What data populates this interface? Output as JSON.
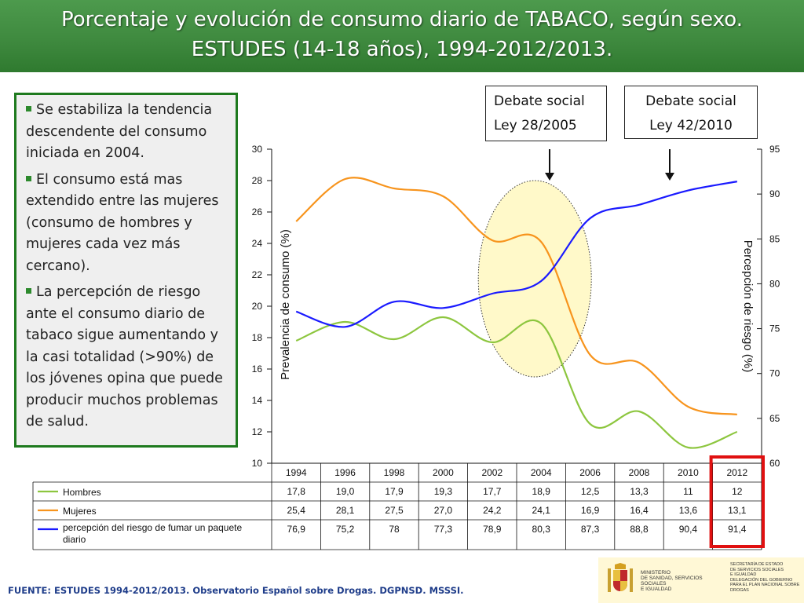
{
  "title": {
    "line1": "Porcentaje y evolución de consumo diario de TABACO, según sexo.",
    "line2": "ESTUDES (14-18 años), 1994-2012/2013."
  },
  "bullets": [
    "Se estabiliza la tendencia descendente del consumo iniciada en 2004.",
    "El consumo está mas extendido entre las mujeres (consumo de hombres y mujeres cada vez más cercano).",
    "La percepción de riesgo ante el consumo diario de tabaco sigue aumentando y la casi totalidad (>90%) de los jóvenes opina que puede producir muchos problemas de salud."
  ],
  "callouts": {
    "c1": {
      "line1": "Debate social",
      "line2": "Ley 28/2005"
    },
    "c2": {
      "line1": "Debate social",
      "line2": "Ley 42/2010"
    }
  },
  "footer": "FUENTE: ESTUDES 1994-2012/2013. Observatorio Español sobre Drogas. DGPNSD. MSSSI.",
  "logo": {
    "ministry_lines": [
      "MINISTERIO",
      "DE SANIDAD, SERVICIOS SOCIALES",
      "E IGUALDAD"
    ],
    "dept_lines": [
      "SECRETARÍA DE ESTADO",
      "DE SERVICIOS SOCIALES",
      "E IGUALDAD",
      "",
      "DELEGACIÓN DEL GOBIERNO",
      "PARA EL PLAN NACIONAL SOBRE DROGAS"
    ]
  },
  "colors": {
    "hombres": "#8dc63f",
    "mujeres": "#f7941d",
    "riesgo": "#1a1aff",
    "highlight_ellipse": "#fff8c0",
    "highlight_box": "#e01010",
    "title_band": "#3f8a3f"
  },
  "chart_data": {
    "type": "line",
    "x": [
      "1994",
      "1996",
      "1998",
      "2000",
      "2002",
      "2004",
      "2006",
      "2008",
      "2010",
      "2012"
    ],
    "series": [
      {
        "name": "Hombres",
        "axis": "left",
        "values": [
          "17,8",
          "19,0",
          "17,9",
          "19,3",
          "17,7",
          "18,9",
          "12,5",
          "13,3",
          "11",
          "12"
        ]
      },
      {
        "name": "Mujeres",
        "axis": "left",
        "values": [
          "25,4",
          "28,1",
          "27,5",
          "27,0",
          "24,2",
          "24,1",
          "16,9",
          "16,4",
          "13,6",
          "13,1"
        ]
      },
      {
        "name": "percepción del riesgo de fumar un paquete diario",
        "axis": "right",
        "values": [
          "76,9",
          "75,2",
          "78",
          "77,3",
          "78,9",
          "80,3",
          "87,3",
          "88,8",
          "90,4",
          "91,4"
        ]
      }
    ],
    "ylabel": "Prevalencia de consumo (%)",
    "y2label": "Percepción de riesgo (%)",
    "ylim": [
      10,
      30
    ],
    "y2lim": [
      60,
      95
    ],
    "yticks": [
      "10",
      "12",
      "14",
      "16",
      "18",
      "20",
      "22",
      "24",
      "26",
      "28",
      "30"
    ],
    "y2ticks": [
      "60",
      "65",
      "70",
      "75",
      "80",
      "85",
      "90",
      "95"
    ],
    "table_below": true,
    "highlight_period": "2004",
    "highlight_column": "2012"
  }
}
